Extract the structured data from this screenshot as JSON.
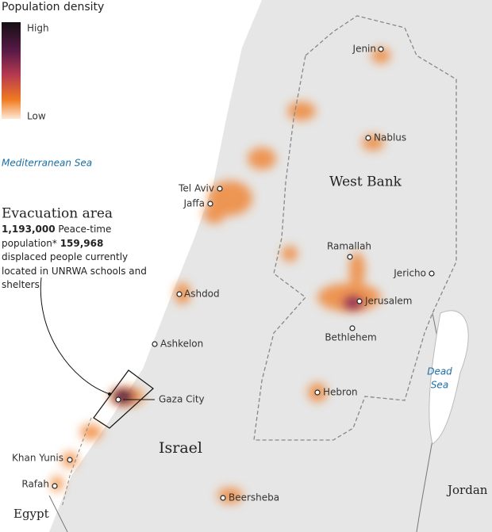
{
  "legend": {
    "title": "Population density",
    "high": "High",
    "low": "Low"
  },
  "sea": "Mediterranean Sea",
  "callout": {
    "title": "Evacuation area",
    "population": "1,193,000",
    "population_label": "Peace-time population*",
    "displaced": "159,968",
    "displaced_label": "displaced people currently located in UNRWA schools and shelters"
  },
  "regions": {
    "west_bank": "West Bank",
    "israel": "Israel",
    "jordan": "Jordan",
    "egypt": "Egypt",
    "dead_sea_1": "Dead",
    "dead_sea_2": "Sea"
  },
  "cities": [
    {
      "name": "Jenin"
    },
    {
      "name": "Nablus"
    },
    {
      "name": "Tel Aviv"
    },
    {
      "name": "Jaffa"
    },
    {
      "name": "Ramallah"
    },
    {
      "name": "Jericho"
    },
    {
      "name": "Jerusalem"
    },
    {
      "name": "Bethlehem"
    },
    {
      "name": "Ashdod"
    },
    {
      "name": "Ashkelon"
    },
    {
      "name": "Gaza City"
    },
    {
      "name": "Hebron"
    },
    {
      "name": "Khan Yunis"
    },
    {
      "name": "Rafah"
    },
    {
      "name": "Beersheba"
    }
  ]
}
